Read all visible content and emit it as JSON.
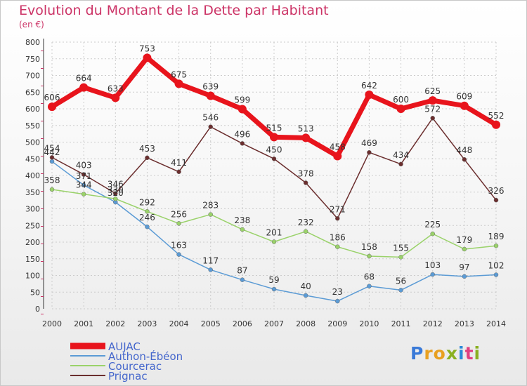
{
  "header": {
    "title": "Evolution du Montant de la Dette par Habitant",
    "subtitle": "(en €)"
  },
  "brand": {
    "text": "Proxiti",
    "colors": [
      "#3a7ad8",
      "#e8a020",
      "#e8a020",
      "#8ab020",
      "#2a8ad8",
      "#e04080",
      "#8ab020"
    ]
  },
  "colors": {
    "title": "#cc3366",
    "grid": "#cccccc",
    "legend_text": "#4466cc"
  },
  "chart_data": {
    "type": "line",
    "x": [
      "2000",
      "2001",
      "2002",
      "2003",
      "2004",
      "2005",
      "2006",
      "2007",
      "2008",
      "2009",
      "2010",
      "2011",
      "2012",
      "2013",
      "2014"
    ],
    "y_ticks": [
      0,
      50,
      100,
      150,
      200,
      250,
      300,
      350,
      400,
      450,
      500,
      550,
      600,
      650,
      700,
      750,
      800
    ],
    "ylim": [
      0,
      800
    ],
    "grid": true,
    "legend": "bottom-left",
    "series": [
      {
        "name": "AUJAC",
        "color": "#e8141c",
        "values": [
          606,
          664,
          633,
          753,
          675,
          639,
          599,
          515,
          513,
          458,
          642,
          600,
          625,
          609,
          552
        ],
        "labels": [
          "606",
          "664",
          "633",
          "753",
          "675",
          "639",
          "599",
          "515",
          "513",
          "458",
          "642",
          "600",
          "625",
          "609",
          "552"
        ]
      },
      {
        "name": "Authon-Ébéon",
        "color": "#5b9bd5",
        "values": [
          442,
          371,
          320,
          246,
          163,
          117,
          87,
          59,
          40,
          23,
          68,
          56,
          103,
          97,
          102
        ],
        "labels": [
          "442",
          "371",
          "320",
          "246",
          "163",
          "117",
          "87",
          "59",
          "40",
          "23",
          "68",
          "56",
          "103",
          "97",
          "102"
        ]
      },
      {
        "name": "Courcerac",
        "color": "#9ad26a",
        "values": [
          358,
          344,
          330,
          292,
          256,
          283,
          238,
          201,
          232,
          186,
          158,
          155,
          225,
          179,
          189
        ],
        "labels": [
          "358",
          "344",
          "330",
          "292",
          "256",
          "283",
          "238",
          "201",
          "232",
          "186",
          "158",
          "155",
          "225",
          "179",
          "189"
        ]
      },
      {
        "name": "Prignac",
        "color": "#6b2e2e",
        "values": [
          454,
          403,
          346,
          453,
          411,
          546,
          496,
          450,
          378,
          271,
          469,
          434,
          572,
          448,
          326
        ],
        "labels": [
          "454",
          "403",
          "346",
          "453",
          "411",
          "546",
          "496",
          "450",
          "378",
          "271",
          "469",
          "434",
          "572",
          "448",
          "326"
        ]
      }
    ]
  }
}
